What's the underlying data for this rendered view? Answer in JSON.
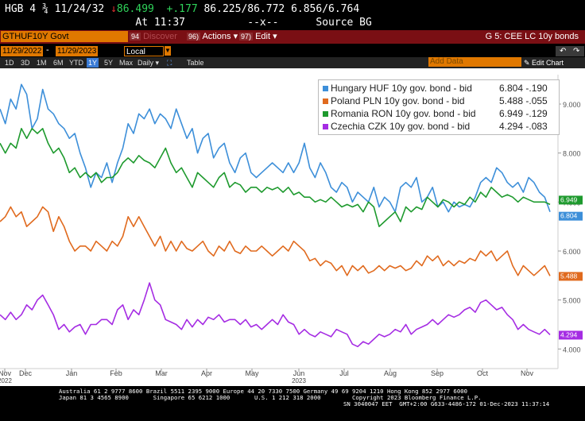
{
  "quote": {
    "ticker": "HGB 4 ¾ 11/24/32",
    "arrow": "↓",
    "last": "86.499",
    "change": "+.177",
    "bid_ask": "86.225/86.772",
    "yields": "6.856/6.764",
    "time_label": "At 11:37",
    "dashes": "--x--",
    "source_label": "Source BG"
  },
  "titlebar": {
    "security": "GTHUF10Y Govt",
    "discover_num": "94",
    "discover_label": "Discover",
    "actions_num": "96)",
    "actions_label": "Actions ▾",
    "edit_num": "97)",
    "edit_label": "Edit ▾",
    "page_label": "G 5: CEE LC 10y bonds"
  },
  "range": {
    "start": "11/29/2022",
    "end": "11/29/2023",
    "currency": "Local CCY",
    "add_data_placeholder": "Add Data"
  },
  "toolbar": {
    "periods": [
      "1D",
      "3D",
      "1M",
      "6M",
      "YTD",
      "1Y",
      "5Y",
      "Max"
    ],
    "active_period": "1Y",
    "frequency": "Daily ▾",
    "table_label": "Table",
    "edit_chart": "✎ Edit Chart",
    "undo": "↶",
    "redo": "↷"
  },
  "chart_data": {
    "type": "line",
    "x_labels": [
      "Nov\n2022",
      "Dec",
      "Jan",
      "Feb",
      "Mar",
      "Apr",
      "May",
      "Jun\n2023",
      "Jul",
      "Aug",
      "Sep",
      "Oct",
      "Nov"
    ],
    "y_ticks": [
      "4.000",
      "5.000",
      "6.000",
      "7.000",
      "8.000",
      "9.000"
    ],
    "ylim": [
      3.6,
      9.6
    ],
    "series": [
      {
        "name": "Hungary HUF 10y gov. bond - bid",
        "last": "6.804",
        "change": "-.190",
        "color": "#3d8fd9",
        "values": [
          8.9,
          8.6,
          9.1,
          8.9,
          9.4,
          9.2,
          8.5,
          8.7,
          9.3,
          8.9,
          8.8,
          8.6,
          8.5,
          8.3,
          8.4,
          8.0,
          7.7,
          7.3,
          7.6,
          7.5,
          7.8,
          7.4,
          7.8,
          8.1,
          8.6,
          8.4,
          8.8,
          8.7,
          8.9,
          8.6,
          8.8,
          8.7,
          8.5,
          8.9,
          8.6,
          8.3,
          8.5,
          8.0,
          8.3,
          8.4,
          7.9,
          8.1,
          8.2,
          7.8,
          7.6,
          7.9,
          8.0,
          7.6,
          7.5,
          7.6,
          7.7,
          7.8,
          7.7,
          7.6,
          7.8,
          7.6,
          7.8,
          8.2,
          7.7,
          7.5,
          7.8,
          7.6,
          7.3,
          7.2,
          7.4,
          7.3,
          7.0,
          7.2,
          7.1,
          7.0,
          7.3,
          6.9,
          7.1,
          7.0,
          6.8,
          7.3,
          7.4,
          7.3,
          7.5,
          7.0,
          7.1,
          7.3,
          6.9,
          7.0,
          6.8,
          7.0,
          6.9,
          6.95,
          6.9,
          7.1,
          7.4,
          7.5,
          7.4,
          7.7,
          7.6,
          7.4,
          7.3,
          7.4,
          7.2,
          7.5,
          7.4,
          7.2,
          7.1,
          6.8
        ]
      },
      {
        "name": "Poland PLN 10y gov. bond - bid",
        "last": "5.488",
        "change": "-.055",
        "color": "#e06a1e",
        "values": [
          6.6,
          6.7,
          6.9,
          6.7,
          6.8,
          6.5,
          6.6,
          6.7,
          6.9,
          6.8,
          6.4,
          6.7,
          6.5,
          6.2,
          6.0,
          6.1,
          6.1,
          6.0,
          6.2,
          6.1,
          6.0,
          6.2,
          6.1,
          6.3,
          6.7,
          6.5,
          6.7,
          6.5,
          6.3,
          6.1,
          6.3,
          6.0,
          6.2,
          6.0,
          6.2,
          6.05,
          6.0,
          6.1,
          6.2,
          6.0,
          5.9,
          6.1,
          6.0,
          6.2,
          6.0,
          5.95,
          6.1,
          6.0,
          6.0,
          6.1,
          6.0,
          5.9,
          6.0,
          6.1,
          6.0,
          6.2,
          6.1,
          6.0,
          5.8,
          5.85,
          5.7,
          5.8,
          5.75,
          5.6,
          5.7,
          5.5,
          5.7,
          5.6,
          5.7,
          5.55,
          5.6,
          5.7,
          5.6,
          5.7,
          5.65,
          5.7,
          5.6,
          5.65,
          5.8,
          5.7,
          5.9,
          5.8,
          5.9,
          5.7,
          5.8,
          5.7,
          5.8,
          5.75,
          5.85,
          5.8,
          6.0,
          5.9,
          6.0,
          5.8,
          5.9,
          6.0,
          5.7,
          5.5,
          5.7,
          5.6,
          5.5,
          5.6,
          5.7,
          5.49
        ]
      },
      {
        "name": "Romania RON 10y gov. bond - bid",
        "last": "6.949",
        "change": "-.129",
        "color": "#1e9a2e",
        "values": [
          8.2,
          8.0,
          8.2,
          8.1,
          8.5,
          8.3,
          8.5,
          8.4,
          8.5,
          8.2,
          8.0,
          8.1,
          7.9,
          7.6,
          7.7,
          7.5,
          7.6,
          7.5,
          7.6,
          7.4,
          7.5,
          7.5,
          7.6,
          7.8,
          7.9,
          7.8,
          7.95,
          7.85,
          7.8,
          7.7,
          7.9,
          8.1,
          7.8,
          7.6,
          7.7,
          7.5,
          7.3,
          7.6,
          7.5,
          7.4,
          7.3,
          7.5,
          7.6,
          7.3,
          7.4,
          7.35,
          7.2,
          7.3,
          7.3,
          7.2,
          7.3,
          7.25,
          7.3,
          7.2,
          7.3,
          7.15,
          7.2,
          7.1,
          7.1,
          7.0,
          7.05,
          7.0,
          7.1,
          7.0,
          6.9,
          6.95,
          6.9,
          6.95,
          6.8,
          7.0,
          6.9,
          6.5,
          6.6,
          6.7,
          6.8,
          6.6,
          6.9,
          6.8,
          6.9,
          6.85,
          7.1,
          7.0,
          6.9,
          7.05,
          7.0,
          6.9,
          7.0,
          6.95,
          7.1,
          7.0,
          7.2,
          7.1,
          7.3,
          7.2,
          7.1,
          7.15,
          7.1,
          7.0,
          7.1,
          7.05,
          7.0,
          7.0,
          7.0,
          6.95
        ]
      },
      {
        "name": "Czechia CZK 10y gov. bond - bid",
        "last": "4.294",
        "change": "-.083",
        "color": "#a52ce3",
        "values": [
          4.7,
          4.6,
          4.75,
          4.6,
          4.7,
          4.9,
          4.8,
          5.0,
          5.1,
          4.9,
          4.7,
          4.4,
          4.5,
          4.35,
          4.45,
          4.5,
          4.3,
          4.5,
          4.5,
          4.6,
          4.6,
          4.5,
          4.8,
          4.9,
          4.6,
          4.8,
          4.7,
          5.0,
          5.35,
          5.0,
          4.9,
          4.6,
          4.55,
          4.5,
          4.4,
          4.6,
          4.45,
          4.6,
          4.5,
          4.65,
          4.6,
          4.7,
          4.55,
          4.6,
          4.6,
          4.5,
          4.6,
          4.45,
          4.5,
          4.4,
          4.5,
          4.6,
          4.5,
          4.7,
          4.55,
          4.5,
          4.3,
          4.4,
          4.3,
          4.25,
          4.35,
          4.3,
          4.25,
          4.4,
          4.35,
          4.3,
          4.1,
          4.05,
          4.15,
          4.1,
          4.2,
          4.3,
          4.25,
          4.3,
          4.4,
          4.35,
          4.5,
          4.3,
          4.4,
          4.45,
          4.5,
          4.6,
          4.5,
          4.6,
          4.7,
          4.65,
          4.7,
          4.8,
          4.85,
          4.75,
          4.95,
          5.0,
          4.9,
          4.8,
          4.85,
          4.7,
          4.6,
          4.4,
          4.5,
          4.4,
          4.35,
          4.3,
          4.4,
          4.29
        ]
      }
    ]
  },
  "footer": {
    "line1": "Australia 61 2 9777 8600 Brazil 5511 2395 9000 Europe 44 20 7330 7500 Germany 49 69 9204 1210 Hong Kong 852 2977 6000",
    "line2": "Japan 81 3 4565 8900       Singapore 65 6212 1000       U.S. 1 212 318 2000         Copyright 2023 Bloomberg Finance L.P.",
    "line3": "SN 3040047 EET  GMT+2:00 G633-4486-172 01-Dec-2023 11:37:14"
  }
}
